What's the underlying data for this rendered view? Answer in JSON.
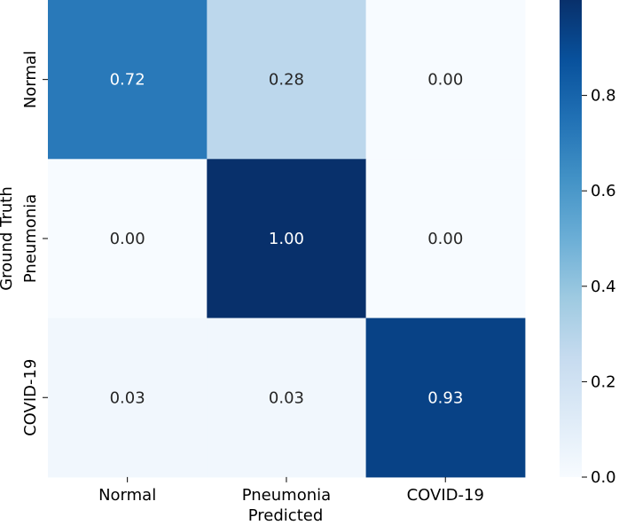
{
  "chart_data": {
    "type": "heatmap",
    "x_categories": [
      "Normal",
      "Pneumonia",
      "COVID-19"
    ],
    "y_categories": [
      "Normal",
      "Pneumonia",
      "COVID-19"
    ],
    "values": [
      [
        0.72,
        0.28,
        0.0
      ],
      [
        0.0,
        1.0,
        0.0
      ],
      [
        0.03,
        0.03,
        0.93
      ]
    ],
    "cell_labels": [
      [
        "0.72",
        "0.28",
        "0.00"
      ],
      [
        "0.00",
        "1.00",
        "0.00"
      ],
      [
        "0.03",
        "0.03",
        "0.93"
      ]
    ],
    "xlabel": "Predicted",
    "ylabel": "Ground Truth",
    "colormap": "Blues",
    "colorbar": {
      "range": [
        0.0,
        1.0
      ],
      "ticks": [
        0.0,
        0.2,
        0.4,
        0.6,
        0.8
      ],
      "tick_labels": [
        "0.0",
        "0.2",
        "0.4",
        "0.6",
        "0.8"
      ]
    },
    "grid": false
  }
}
